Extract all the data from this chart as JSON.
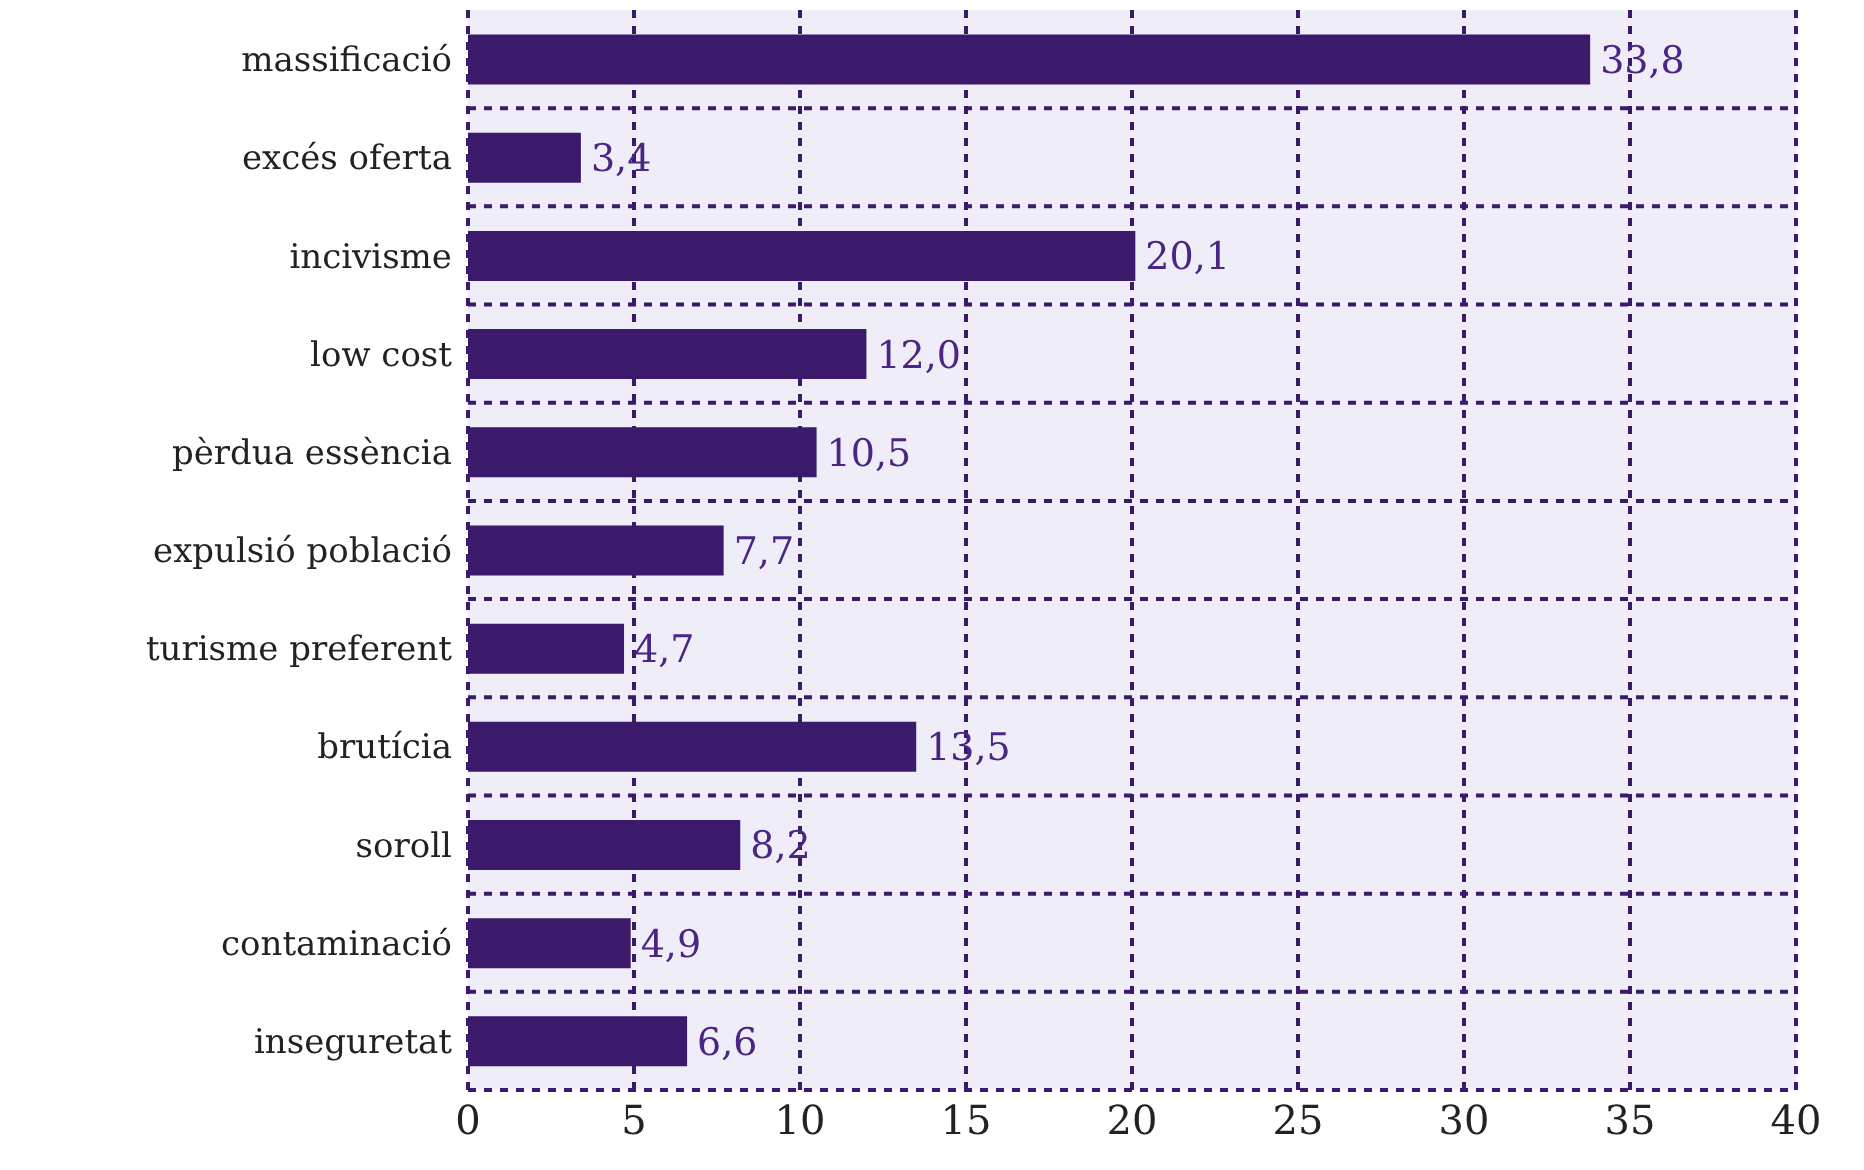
{
  "chart_data": {
    "type": "bar",
    "orientation": "horizontal",
    "categories": [
      "massificació",
      "excés oferta",
      "incivisme",
      "low cost",
      "pèrdua essència",
      "expulsió població",
      "turisme preferent",
      "brutícia",
      "soroll",
      "contaminació",
      "inseguretat"
    ],
    "values": [
      33.8,
      3.4,
      20.1,
      12.0,
      10.5,
      7.7,
      4.7,
      13.5,
      8.2,
      4.9,
      6.6
    ],
    "value_labels": [
      "33,8",
      "3,4",
      "20,1",
      "12,0",
      "10,5",
      "7,7",
      "4,7",
      "13,5",
      "8,2",
      "4,9",
      "6,6"
    ],
    "color": "#3b1a6b",
    "xlim": [
      0,
      40
    ],
    "xticks": [
      0,
      5,
      10,
      15,
      20,
      25,
      30,
      35,
      40
    ],
    "grid": true
  }
}
